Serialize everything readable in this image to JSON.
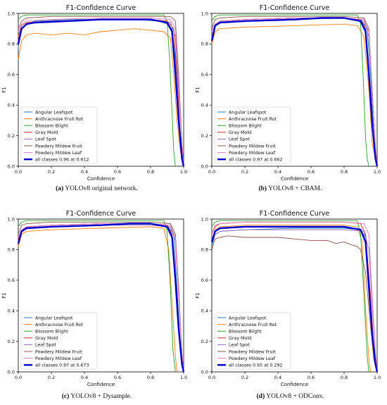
{
  "series_names": [
    "Angular Leafspot",
    "Anthracnose Fruit Rot",
    "Blossom Blight",
    "Gray Mold",
    "Leaf Spot",
    "Powdery Mildew Fruit",
    "Powdery Mildew Leaf"
  ],
  "colors": [
    "#1f77b4",
    "#ff7f0e",
    "#2ca02c",
    "#d62728",
    "#9467bd",
    "#8c564b",
    "#e377c2",
    "#0000cc"
  ],
  "captions": [
    {
      "letter": "(a)",
      "text": "YOLOv8 original network."
    },
    {
      "letter": "(b)",
      "text": "YOLOv8 + CBAM."
    },
    {
      "letter": "(c)",
      "text": "YOLOv8 + Dysample."
    },
    {
      "letter": "(d)",
      "text": "YOLOv8 + ODConv."
    }
  ],
  "chart_data": [
    {
      "type": "line",
      "title": "F1-Confidence Curve",
      "xlabel": "Confidence",
      "ylabel": "F1",
      "xlim": [
        0,
        1
      ],
      "ylim": [
        0,
        1
      ],
      "xticks": [
        "0.0",
        "0.2",
        "0.4",
        "0.6",
        "0.8",
        "1.0"
      ],
      "yticks": [
        "0.0",
        "0.2",
        "0.4",
        "0.6",
        "0.8",
        "1.0"
      ],
      "grid": false,
      "legend": "lower-left",
      "series": [
        {
          "name": "Angular Leafspot",
          "x": [
            0,
            0.02,
            0.05,
            0.1,
            0.3,
            0.5,
            0.7,
            0.85,
            0.9,
            0.93,
            0.95,
            0.97,
            0.99,
            1.0
          ],
          "y": [
            0.78,
            0.9,
            0.93,
            0.95,
            0.96,
            0.96,
            0.96,
            0.95,
            0.93,
            0.9,
            0.7,
            0.35,
            0.08,
            0.0
          ]
        },
        {
          "name": "Anthracnose Fruit Rot",
          "x": [
            0,
            0.02,
            0.05,
            0.1,
            0.2,
            0.3,
            0.4,
            0.5,
            0.6,
            0.7,
            0.8,
            0.88,
            0.92,
            0.94,
            0.96,
            0.98,
            1.0
          ],
          "y": [
            0.7,
            0.82,
            0.86,
            0.87,
            0.86,
            0.87,
            0.86,
            0.88,
            0.89,
            0.9,
            0.89,
            0.88,
            0.84,
            0.6,
            0.3,
            0.1,
            0.0
          ]
        },
        {
          "name": "Blossom Blight",
          "x": [
            0,
            0.02,
            0.05,
            0.2,
            0.5,
            0.8,
            0.88,
            0.9,
            0.915,
            0.93,
            0.94,
            0.95
          ],
          "y": [
            0.96,
            0.98,
            0.99,
            0.99,
            0.99,
            0.99,
            0.99,
            0.95,
            0.7,
            0.35,
            0.1,
            0.0
          ]
        },
        {
          "name": "Gray Mold",
          "x": [
            0,
            0.02,
            0.05,
            0.2,
            0.5,
            0.8,
            0.9,
            0.94,
            0.96,
            0.98,
            1.0
          ],
          "y": [
            0.85,
            0.92,
            0.94,
            0.95,
            0.96,
            0.96,
            0.95,
            0.9,
            0.6,
            0.2,
            0.0
          ]
        },
        {
          "name": "Leaf Spot",
          "x": [
            0,
            0.02,
            0.05,
            0.2,
            0.5,
            0.8,
            0.92,
            0.95,
            0.97,
            0.99,
            1.0
          ],
          "y": [
            0.82,
            0.9,
            0.93,
            0.95,
            0.96,
            0.96,
            0.94,
            0.85,
            0.5,
            0.15,
            0.0
          ]
        },
        {
          "name": "Powdery Mildew Fruit",
          "x": [
            0,
            0.02,
            0.05,
            0.2,
            0.5,
            0.8,
            0.92,
            0.95,
            0.97,
            0.99,
            1.0
          ],
          "y": [
            0.9,
            0.95,
            0.97,
            0.98,
            0.98,
            0.98,
            0.98,
            0.95,
            0.6,
            0.15,
            0.0
          ]
        },
        {
          "name": "Powdery Mildew Leaf",
          "x": [
            0,
            0.02,
            0.05,
            0.2,
            0.5,
            0.8,
            0.92,
            0.95,
            0.97,
            0.99,
            1.0
          ],
          "y": [
            0.88,
            0.93,
            0.95,
            0.96,
            0.97,
            0.97,
            0.96,
            0.9,
            0.55,
            0.15,
            0.0
          ]
        },
        {
          "name": "all classes 0.96 at 0.612",
          "x": [
            0,
            0.02,
            0.05,
            0.1,
            0.3,
            0.5,
            0.612,
            0.8,
            0.9,
            0.93,
            0.95,
            0.97,
            0.99,
            1.0
          ],
          "y": [
            0.8,
            0.9,
            0.93,
            0.94,
            0.95,
            0.96,
            0.96,
            0.96,
            0.94,
            0.88,
            0.6,
            0.3,
            0.05,
            0.0
          ]
        }
      ]
    },
    {
      "type": "line",
      "title": "F1-Confidence Curve",
      "xlabel": "Confidence",
      "ylabel": "F1",
      "xlim": [
        0,
        1
      ],
      "ylim": [
        0,
        1
      ],
      "xticks": [
        "0.0",
        "0.2",
        "0.4",
        "0.6",
        "0.8",
        "1.0"
      ],
      "yticks": [
        "0.0",
        "0.2",
        "0.4",
        "0.6",
        "0.8",
        "1.0"
      ],
      "grid": false,
      "legend": "lower-left",
      "series": [
        {
          "name": "Angular Leafspot",
          "x": [
            0,
            0.02,
            0.05,
            0.2,
            0.5,
            0.8,
            0.9,
            0.94,
            0.96,
            0.98,
            1.0
          ],
          "y": [
            0.82,
            0.92,
            0.95,
            0.96,
            0.97,
            0.97,
            0.96,
            0.9,
            0.6,
            0.2,
            0.0
          ]
        },
        {
          "name": "Anthracnose Fruit Rot",
          "x": [
            0,
            0.02,
            0.05,
            0.2,
            0.5,
            0.8,
            0.88,
            0.92,
            0.95,
            0.97,
            1.0
          ],
          "y": [
            0.8,
            0.88,
            0.9,
            0.91,
            0.92,
            0.93,
            0.92,
            0.85,
            0.5,
            0.15,
            0.0
          ]
        },
        {
          "name": "Blossom Blight",
          "x": [
            0,
            0.02,
            0.05,
            0.2,
            0.5,
            0.8,
            0.88,
            0.9,
            0.915,
            0.93,
            0.94,
            0.95
          ],
          "y": [
            0.95,
            0.98,
            0.99,
            0.99,
            0.99,
            0.99,
            0.99,
            0.93,
            0.6,
            0.18,
            0.05,
            0.0
          ]
        },
        {
          "name": "Gray Mold",
          "x": [
            0,
            0.02,
            0.05,
            0.2,
            0.5,
            0.8,
            0.9,
            0.93,
            0.96,
            0.98,
            1.0
          ],
          "y": [
            0.88,
            0.93,
            0.95,
            0.96,
            0.97,
            0.97,
            0.96,
            0.9,
            0.5,
            0.15,
            0.0
          ]
        },
        {
          "name": "Leaf Spot",
          "x": [
            0,
            0.02,
            0.05,
            0.2,
            0.5,
            0.8,
            0.92,
            0.95,
            0.97,
            0.99,
            1.0
          ],
          "y": [
            0.85,
            0.92,
            0.94,
            0.95,
            0.96,
            0.97,
            0.95,
            0.85,
            0.5,
            0.12,
            0.0
          ]
        },
        {
          "name": "Powdery Mildew Fruit",
          "x": [
            0,
            0.02,
            0.05,
            0.2,
            0.5,
            0.8,
            0.92,
            0.95,
            0.97,
            0.99,
            1.0
          ],
          "y": [
            0.9,
            0.96,
            0.97,
            0.98,
            0.98,
            0.98,
            0.97,
            0.9,
            0.5,
            0.12,
            0.0
          ]
        },
        {
          "name": "Powdery Mildew Leaf",
          "x": [
            0,
            0.02,
            0.05,
            0.2,
            0.5,
            0.8,
            0.92,
            0.95,
            0.97,
            0.99,
            1.0
          ],
          "y": [
            0.88,
            0.93,
            0.95,
            0.96,
            0.97,
            0.97,
            0.96,
            0.88,
            0.5,
            0.12,
            0.0
          ]
        },
        {
          "name": "all classes 0.97 at 0.662",
          "x": [
            0,
            0.02,
            0.05,
            0.2,
            0.5,
            0.662,
            0.8,
            0.9,
            0.93,
            0.95,
            0.97,
            0.99,
            1.0
          ],
          "y": [
            0.82,
            0.92,
            0.94,
            0.95,
            0.96,
            0.97,
            0.97,
            0.95,
            0.88,
            0.6,
            0.28,
            0.05,
            0.0
          ]
        }
      ]
    },
    {
      "type": "line",
      "title": "F1-Confidence Curve",
      "xlabel": "Confidence",
      "ylabel": "F1",
      "xlim": [
        0,
        1
      ],
      "ylim": [
        0,
        1
      ],
      "xticks": [
        "0.0",
        "0.2",
        "0.4",
        "0.6",
        "0.8",
        "1.0"
      ],
      "yticks": [
        "0.0",
        "0.2",
        "0.4",
        "0.6",
        "0.8",
        "1.0"
      ],
      "grid": false,
      "legend": "lower-left",
      "series": [
        {
          "name": "Angular Leafspot",
          "x": [
            0,
            0.02,
            0.05,
            0.2,
            0.5,
            0.8,
            0.9,
            0.94,
            0.96,
            0.98,
            1.0
          ],
          "y": [
            0.84,
            0.92,
            0.95,
            0.96,
            0.97,
            0.97,
            0.96,
            0.9,
            0.55,
            0.18,
            0.0
          ]
        },
        {
          "name": "Anthracnose Fruit Rot",
          "x": [
            0,
            0.02,
            0.05,
            0.2,
            0.5,
            0.8,
            0.88,
            0.91,
            0.93,
            0.95,
            0.96
          ],
          "y": [
            0.82,
            0.9,
            0.92,
            0.93,
            0.94,
            0.95,
            0.94,
            0.8,
            0.45,
            0.1,
            0.0
          ]
        },
        {
          "name": "Blossom Blight",
          "x": [
            0,
            0.02,
            0.05,
            0.2,
            0.5,
            0.8,
            0.88,
            0.9,
            0.92,
            0.935,
            0.95
          ],
          "y": [
            0.95,
            0.98,
            0.99,
            0.99,
            0.99,
            0.99,
            0.99,
            0.92,
            0.55,
            0.15,
            0.0
          ]
        },
        {
          "name": "Gray Mold",
          "x": [
            0,
            0.02,
            0.05,
            0.2,
            0.5,
            0.8,
            0.9,
            0.93,
            0.96,
            0.98,
            1.0
          ],
          "y": [
            0.86,
            0.93,
            0.95,
            0.96,
            0.97,
            0.97,
            0.96,
            0.9,
            0.5,
            0.15,
            0.0
          ]
        },
        {
          "name": "Leaf Spot",
          "x": [
            0,
            0.02,
            0.05,
            0.2,
            0.5,
            0.8,
            0.92,
            0.95,
            0.97,
            0.99,
            1.0
          ],
          "y": [
            0.85,
            0.92,
            0.94,
            0.95,
            0.96,
            0.96,
            0.95,
            0.86,
            0.5,
            0.12,
            0.0
          ]
        },
        {
          "name": "Powdery Mildew Fruit",
          "x": [
            0,
            0.02,
            0.05,
            0.2,
            0.5,
            0.8,
            0.92,
            0.95,
            0.97,
            0.99,
            1.0
          ],
          "y": [
            0.9,
            0.96,
            0.97,
            0.98,
            0.98,
            0.98,
            0.97,
            0.9,
            0.55,
            0.12,
            0.0
          ]
        },
        {
          "name": "Powdery Mildew Leaf",
          "x": [
            0,
            0.02,
            0.05,
            0.2,
            0.5,
            0.8,
            0.92,
            0.95,
            0.97,
            0.99,
            1.0
          ],
          "y": [
            0.88,
            0.93,
            0.95,
            0.96,
            0.97,
            0.97,
            0.96,
            0.88,
            0.5,
            0.12,
            0.0
          ]
        },
        {
          "name": "all classes 0.97 at 0.673",
          "x": [
            0,
            0.02,
            0.05,
            0.2,
            0.5,
            0.673,
            0.8,
            0.9,
            0.93,
            0.95,
            0.97,
            0.99,
            1.0
          ],
          "y": [
            0.84,
            0.92,
            0.94,
            0.95,
            0.96,
            0.97,
            0.97,
            0.95,
            0.88,
            0.6,
            0.28,
            0.05,
            0.0
          ]
        }
      ]
    },
    {
      "type": "line",
      "title": "F1-Confidence Curve",
      "xlabel": "Confidence",
      "ylabel": "F1",
      "xlim": [
        0,
        1
      ],
      "ylim": [
        0,
        1
      ],
      "xticks": [
        "0.0",
        "0.2",
        "0.4",
        "0.6",
        "0.8",
        "1.0"
      ],
      "yticks": [
        "0.0",
        "0.2",
        "0.4",
        "0.6",
        "0.8",
        "1.0"
      ],
      "grid": false,
      "legend": "lower-left",
      "series": [
        {
          "name": "Angular Leafspot",
          "x": [
            0,
            0.02,
            0.05,
            0.2,
            0.5,
            0.8,
            0.9,
            0.93,
            0.95,
            0.97,
            0.99,
            1.0
          ],
          "y": [
            0.82,
            0.9,
            0.92,
            0.93,
            0.94,
            0.94,
            0.93,
            0.88,
            0.6,
            0.25,
            0.05,
            0.0
          ]
        },
        {
          "name": "Anthracnose Fruit Rot",
          "x": [
            0,
            0.02,
            0.05,
            0.2,
            0.5,
            0.8,
            0.88,
            0.91,
            0.93,
            0.95,
            0.96
          ],
          "y": [
            0.85,
            0.93,
            0.95,
            0.96,
            0.96,
            0.96,
            0.95,
            0.85,
            0.4,
            0.08,
            0.0
          ]
        },
        {
          "name": "Blossom Blight",
          "x": [
            0,
            0.02,
            0.05,
            0.2,
            0.5,
            0.8,
            0.88,
            0.9,
            0.92,
            0.94,
            0.95
          ],
          "y": [
            0.95,
            0.98,
            0.99,
            0.99,
            0.99,
            0.99,
            0.99,
            0.9,
            0.5,
            0.1,
            0.0
          ]
        },
        {
          "name": "Gray Mold",
          "x": [
            0,
            0.02,
            0.05,
            0.2,
            0.5,
            0.8,
            0.9,
            0.93,
            0.96,
            0.98,
            1.0
          ],
          "y": [
            0.9,
            0.95,
            0.97,
            0.98,
            0.98,
            0.98,
            0.97,
            0.9,
            0.5,
            0.15,
            0.0
          ]
        },
        {
          "name": "Leaf Spot",
          "x": [
            0,
            0.02,
            0.05,
            0.2,
            0.5,
            0.8,
            0.92,
            0.95,
            0.97,
            0.99,
            1.0
          ],
          "y": [
            0.84,
            0.9,
            0.92,
            0.93,
            0.93,
            0.93,
            0.92,
            0.8,
            0.45,
            0.1,
            0.0
          ]
        },
        {
          "name": "Powdery Mildew Fruit",
          "x": [
            0,
            0.02,
            0.05,
            0.1,
            0.2,
            0.3,
            0.4,
            0.5,
            0.6,
            0.7,
            0.75,
            0.8,
            0.85,
            0.88,
            0.9,
            0.93,
            0.96,
            0.98,
            1.0
          ],
          "y": [
            0.8,
            0.87,
            0.88,
            0.89,
            0.88,
            0.88,
            0.88,
            0.87,
            0.86,
            0.86,
            0.84,
            0.85,
            0.83,
            0.82,
            0.8,
            0.65,
            0.3,
            0.08,
            0.0
          ]
        },
        {
          "name": "Powdery Mildew Leaf",
          "x": [
            0,
            0.02,
            0.05,
            0.2,
            0.5,
            0.8,
            0.92,
            0.95,
            0.97,
            0.99,
            1.0
          ],
          "y": [
            0.9,
            0.96,
            0.97,
            0.98,
            0.98,
            0.98,
            0.97,
            0.9,
            0.5,
            0.12,
            0.0
          ]
        },
        {
          "name": "all classes 0.95 at 0.292",
          "x": [
            0,
            0.02,
            0.05,
            0.2,
            0.292,
            0.5,
            0.8,
            0.9,
            0.93,
            0.95,
            0.97,
            0.99,
            1.0
          ],
          "y": [
            0.85,
            0.92,
            0.94,
            0.95,
            0.95,
            0.95,
            0.95,
            0.93,
            0.85,
            0.55,
            0.25,
            0.05,
            0.0
          ]
        }
      ]
    }
  ]
}
